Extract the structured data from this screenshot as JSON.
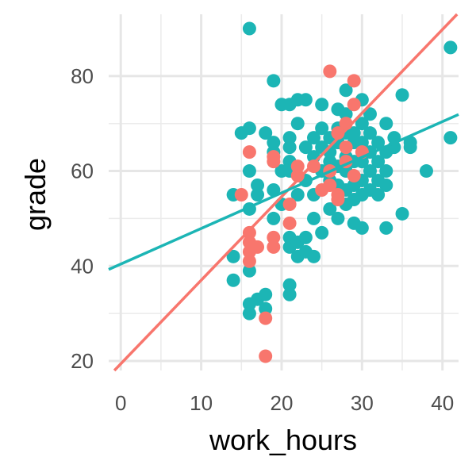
{
  "chart_data": {
    "type": "scatter",
    "title": "",
    "xlabel": "work_hours",
    "ylabel": "grade",
    "xlim": [
      -1.5,
      42
    ],
    "ylim": [
      18,
      93
    ],
    "x_ticks": [
      0,
      10,
      20,
      30,
      40
    ],
    "y_ticks": [
      20,
      40,
      60,
      80
    ],
    "grid": true,
    "legend": "none",
    "colors": {
      "group_red": "#F8766D",
      "group_teal": "#1CB5B5"
    },
    "series": [
      {
        "color": "#F8766D",
        "points": [
          [
            26,
            81
          ],
          [
            29,
            79
          ],
          [
            18,
            29
          ],
          [
            18,
            21
          ],
          [
            16,
            64
          ],
          [
            15,
            55
          ],
          [
            16,
            47
          ],
          [
            16,
            45
          ],
          [
            16,
            43
          ],
          [
            16,
            41
          ],
          [
            17,
            44
          ],
          [
            19,
            46
          ],
          [
            19,
            44
          ],
          [
            19,
            63
          ],
          [
            19,
            62
          ],
          [
            21,
            49
          ],
          [
            21,
            53
          ],
          [
            22,
            59
          ],
          [
            24,
            61
          ],
          [
            25,
            56
          ],
          [
            26,
            57
          ],
          [
            27,
            55
          ],
          [
            27,
            54
          ],
          [
            28,
            65
          ],
          [
            28,
            70
          ],
          [
            29,
            74
          ],
          [
            26,
            60
          ],
          [
            30,
            64
          ],
          [
            27,
            68
          ],
          [
            29,
            59
          ],
          [
            28,
            62
          ],
          [
            22,
            61
          ]
        ],
        "fit": {
          "intercept": 19.4,
          "slope": 1.76
        }
      },
      {
        "color": "#1CB5B5",
        "points": [
          [
            16,
            90
          ],
          [
            19,
            79
          ],
          [
            41,
            86
          ],
          [
            41,
            67
          ],
          [
            38,
            60
          ],
          [
            35,
            51
          ],
          [
            33,
            48
          ],
          [
            35,
            76
          ],
          [
            36,
            66
          ],
          [
            36,
            65
          ],
          [
            14,
            55
          ],
          [
            14,
            42
          ],
          [
            14,
            37
          ],
          [
            15,
            68
          ],
          [
            16,
            69
          ],
          [
            16,
            60
          ],
          [
            16,
            52
          ],
          [
            16,
            39
          ],
          [
            16,
            32
          ],
          [
            16,
            30
          ],
          [
            17,
            33
          ],
          [
            18,
            34
          ],
          [
            18,
            31
          ],
          [
            17,
            57
          ],
          [
            17,
            55
          ],
          [
            18,
            68
          ],
          [
            19,
            66
          ],
          [
            19,
            64
          ],
          [
            19,
            56
          ],
          [
            19,
            50
          ],
          [
            20,
            74
          ],
          [
            21,
            74
          ],
          [
            22,
            75
          ],
          [
            23,
            75
          ],
          [
            22,
            70
          ],
          [
            21,
            67
          ],
          [
            21,
            65
          ],
          [
            21,
            62
          ],
          [
            21,
            60
          ],
          [
            21,
            46
          ],
          [
            21,
            44
          ],
          [
            21,
            36
          ],
          [
            21,
            34
          ],
          [
            22,
            45
          ],
          [
            22,
            42
          ],
          [
            23,
            43
          ],
          [
            23,
            46
          ],
          [
            24,
            42
          ],
          [
            24,
            50
          ],
          [
            25,
            74
          ],
          [
            25,
            47
          ],
          [
            25,
            69
          ],
          [
            26,
            67
          ],
          [
            26,
            64
          ],
          [
            26,
            62
          ],
          [
            26,
            58
          ],
          [
            26,
            52
          ],
          [
            27,
            73
          ],
          [
            27,
            66
          ],
          [
            27,
            61
          ],
          [
            27,
            57
          ],
          [
            27,
            50
          ],
          [
            28,
            77
          ],
          [
            28,
            72
          ],
          [
            28,
            63
          ],
          [
            28,
            60
          ],
          [
            28,
            56
          ],
          [
            28,
            53
          ],
          [
            29,
            68
          ],
          [
            29,
            66
          ],
          [
            29,
            62
          ],
          [
            29,
            57
          ],
          [
            29,
            54
          ],
          [
            29,
            49
          ],
          [
            30,
            75
          ],
          [
            30,
            70
          ],
          [
            30,
            66
          ],
          [
            30,
            62
          ],
          [
            30,
            58
          ],
          [
            30,
            55
          ],
          [
            30,
            48
          ],
          [
            31,
            68
          ],
          [
            31,
            64
          ],
          [
            31,
            60
          ],
          [
            31,
            56
          ],
          [
            32,
            66
          ],
          [
            32,
            62
          ],
          [
            32,
            58
          ],
          [
            33,
            70
          ],
          [
            33,
            64
          ],
          [
            33,
            60
          ],
          [
            33,
            57
          ],
          [
            34,
            67
          ],
          [
            34,
            65
          ],
          [
            23,
            65
          ],
          [
            24,
            67
          ],
          [
            24,
            55
          ],
          [
            25,
            60
          ],
          [
            22,
            55
          ],
          [
            23,
            58
          ],
          [
            20,
            60
          ],
          [
            20,
            53
          ],
          [
            24,
            63
          ],
          [
            25,
            65
          ],
          [
            27,
            69
          ],
          [
            31,
            72
          ],
          [
            32,
            55
          ],
          [
            28,
            68
          ]
        ],
        "fit": {
          "intercept": 40.4,
          "slope": 0.75
        }
      }
    ]
  }
}
